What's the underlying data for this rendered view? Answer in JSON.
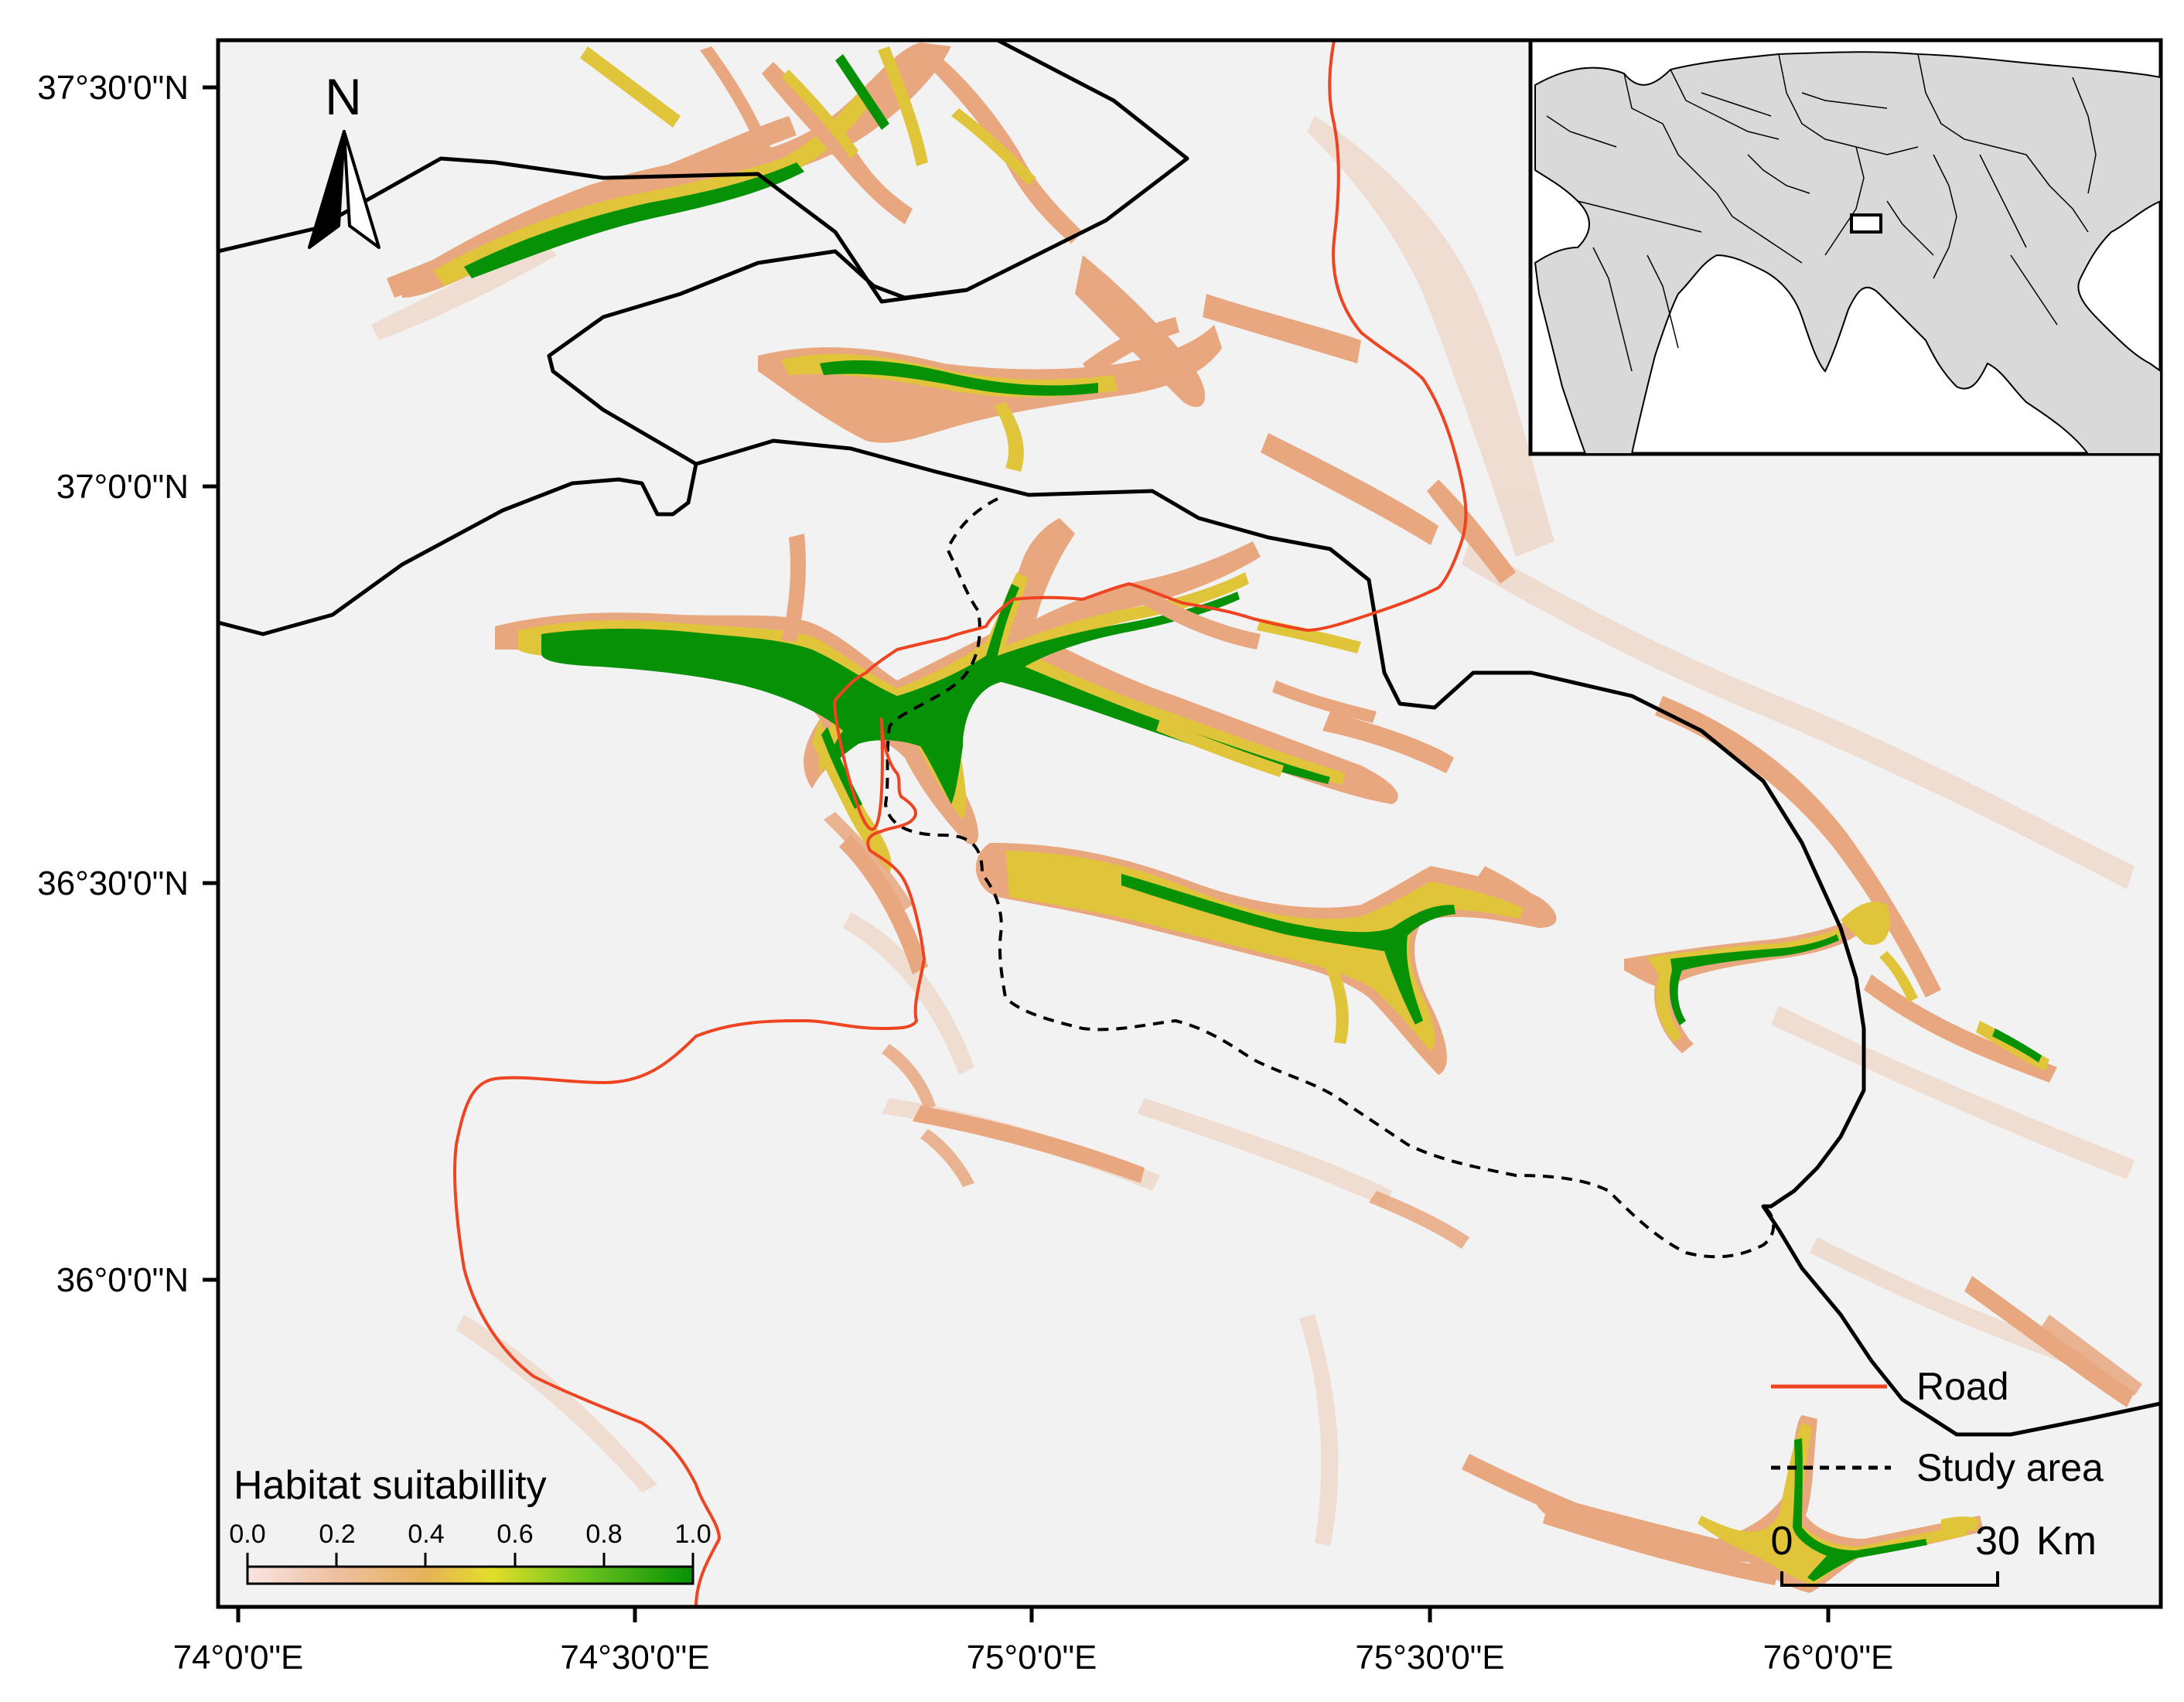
{
  "map": {
    "lat_labels": [
      "37°30'0\"N",
      "37°0'0\"N",
      "36°30'0\"N",
      "36°0'0\"N"
    ],
    "lon_labels": [
      "74°0'0\"E",
      "74°30'0\"E",
      "75°0'0\"E",
      "75°30'0\"E",
      "76°0'0\"E"
    ],
    "north_label": "N",
    "colors": {
      "background_raster": "#f2f2f2",
      "low_suitability": "#e8a77f",
      "mid_suitability": "#e0c53a",
      "high_suitability": "#069106",
      "road": "#ee4422",
      "boundary": "#000000"
    }
  },
  "colorbar": {
    "title": "Habitat suitabillity",
    "tick_labels": [
      "0.0",
      "0.2",
      "0.4",
      "0.6",
      "0.8",
      "1.0"
    ],
    "stops": [
      {
        "value": 0.0,
        "color": "#f9e4e1"
      },
      {
        "value": 0.2,
        "color": "#eec0a0"
      },
      {
        "value": 0.4,
        "color": "#e6b25a"
      },
      {
        "value": 0.55,
        "color": "#e2de28"
      },
      {
        "value": 0.75,
        "color": "#6cc41e"
      },
      {
        "value": 1.0,
        "color": "#059105"
      }
    ]
  },
  "legend": {
    "road_label": "Road",
    "study_area_label": "Study area"
  },
  "scalebar": {
    "start_label": "0",
    "end_label": "30",
    "unit_label": "Km"
  },
  "inset": {
    "description_icon": "world-locator-map"
  }
}
